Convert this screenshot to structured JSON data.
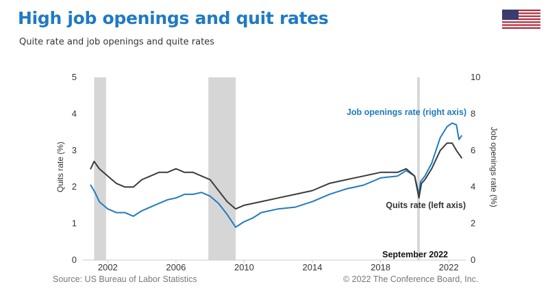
{
  "header": {
    "title": "High job openings and quit rates",
    "subtitle": "Quite rate and job openings and quite rates"
  },
  "footer": {
    "source": "Source: US Bureau of Labor Statistics",
    "copyright": "© 2022 The Conference Board, Inc."
  },
  "flag": {
    "icon": "us-flag-icon"
  },
  "colors": {
    "job_openings": "#1f7ac2",
    "quits": "#3a3a3a",
    "recession": "#d6d6d6",
    "title": "#1f7ac2"
  },
  "chart_data": {
    "type": "line",
    "left_axis": {
      "label": "Quits rate (%)",
      "range": [
        0,
        5
      ],
      "ticks": [
        "0",
        "1",
        "2",
        "3",
        "4",
        "5"
      ]
    },
    "right_axis": {
      "label": "Job openings rate (%)",
      "range": [
        0,
        10
      ],
      "ticks": [
        "0",
        "2",
        "4",
        "6",
        "8",
        "10"
      ]
    },
    "x_axis": {
      "range": [
        2000.5,
        2023.0
      ],
      "ticks": [
        "2002",
        "2006",
        "2010",
        "2014",
        "2018",
        "2022"
      ]
    },
    "date_label": "September 2022",
    "shaded_periods": [
      [
        2001.2,
        2001.9
      ],
      [
        2007.9,
        2009.5
      ],
      [
        2020.15,
        2020.3
      ]
    ],
    "series": [
      {
        "name": "Job openings rate (right axis)",
        "axis": "right",
        "x": [
          2001.0,
          2001.25,
          2001.5,
          2002.0,
          2002.5,
          2003.0,
          2003.5,
          2004.0,
          2004.5,
          2005.0,
          2005.5,
          2006.0,
          2006.5,
          2007.0,
          2007.5,
          2008.0,
          2008.5,
          2009.0,
          2009.5,
          2010.0,
          2010.5,
          2011.0,
          2012.0,
          2013.0,
          2014.0,
          2015.0,
          2016.0,
          2017.0,
          2018.0,
          2019.0,
          2019.5,
          2020.0,
          2020.25,
          2020.35,
          2020.6,
          2021.0,
          2021.5,
          2021.9,
          2022.2,
          2022.45,
          2022.6,
          2022.75
        ],
        "y": [
          4.1,
          3.7,
          3.2,
          2.8,
          2.6,
          2.6,
          2.4,
          2.7,
          2.9,
          3.1,
          3.3,
          3.4,
          3.6,
          3.6,
          3.7,
          3.5,
          3.1,
          2.5,
          1.8,
          2.1,
          2.3,
          2.6,
          2.8,
          2.9,
          3.2,
          3.6,
          3.9,
          4.1,
          4.5,
          4.6,
          4.9,
          4.6,
          3.6,
          4.3,
          4.6,
          5.3,
          6.7,
          7.3,
          7.5,
          7.4,
          6.6,
          6.8
        ]
      },
      {
        "name": "Quits rate (left axis)",
        "axis": "left",
        "x": [
          2001.0,
          2001.2,
          2001.5,
          2002.0,
          2002.5,
          2003.0,
          2003.5,
          2004.0,
          2004.5,
          2005.0,
          2005.5,
          2006.0,
          2006.5,
          2007.0,
          2007.5,
          2008.0,
          2008.5,
          2009.0,
          2009.5,
          2010.0,
          2011.0,
          2012.0,
          2013.0,
          2014.0,
          2015.0,
          2016.0,
          2017.0,
          2018.0,
          2019.0,
          2019.5,
          2020.0,
          2020.25,
          2020.4,
          2020.6,
          2021.0,
          2021.5,
          2021.9,
          2022.2,
          2022.45,
          2022.6,
          2022.75
        ],
        "y": [
          2.5,
          2.7,
          2.5,
          2.3,
          2.1,
          2.0,
          2.0,
          2.2,
          2.3,
          2.4,
          2.4,
          2.5,
          2.4,
          2.4,
          2.3,
          2.2,
          1.9,
          1.6,
          1.4,
          1.5,
          1.6,
          1.7,
          1.8,
          1.9,
          2.1,
          2.2,
          2.3,
          2.4,
          2.4,
          2.5,
          2.3,
          1.7,
          2.1,
          2.2,
          2.5,
          3.0,
          3.2,
          3.2,
          3.0,
          2.9,
          2.8
        ]
      }
    ]
  }
}
